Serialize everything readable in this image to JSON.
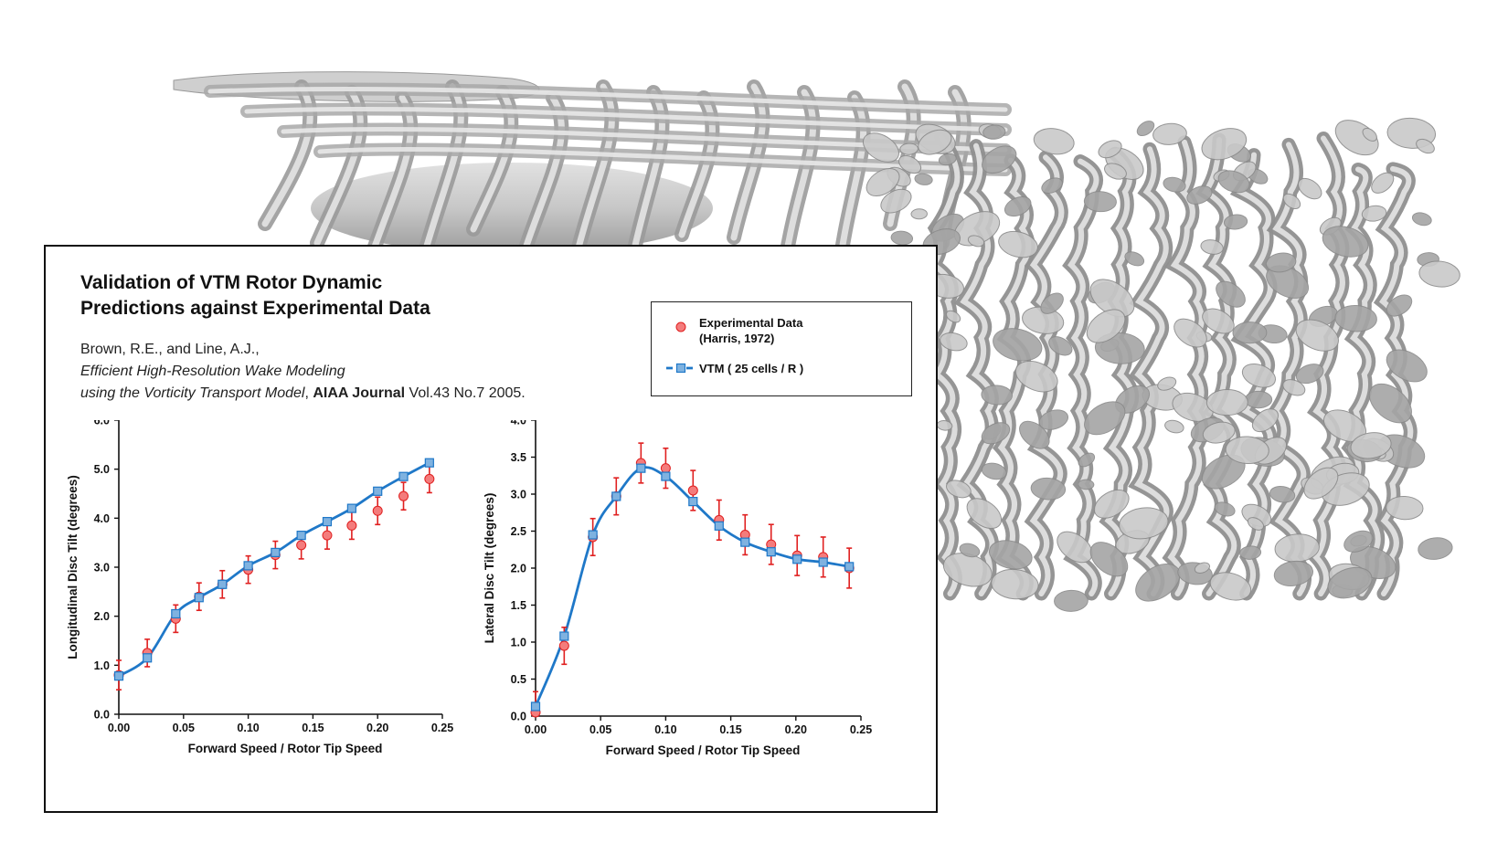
{
  "header": {
    "title_line1": "Validation of VTM Rotor Dynamic",
    "title_line2": "Predictions against Experimental Data"
  },
  "citation": {
    "authors": "Brown, R.E., and Line, A.J.,",
    "paper_title_line1": "Efficient High-Resolution Wake Modeling",
    "paper_title_line2": "using the Vorticity Transport Model",
    "separator": ", ",
    "journal": "AIAA Journal",
    "volume": " Vol.43 No.7 2005."
  },
  "legend": {
    "experimental_line1": "Experimental Data",
    "experimental_line2": "(Harris, 1972)",
    "vtm": "VTM ( 25 cells / R )"
  },
  "colors": {
    "experimental_marker": "#f47c7c",
    "error_bar": "#e02020",
    "vtm_line": "#1f78c8",
    "vtm_marker": "#7fb2e0",
    "wake": "#b8b8b8"
  },
  "chart_data": [
    {
      "type": "line",
      "xlabel": "Forward Speed / Rotor Tip Speed",
      "ylabel": "Longitudinal Disc Tilt (degrees)",
      "xlim": [
        0,
        0.25
      ],
      "ylim": [
        0,
        6
      ],
      "x_ticks": [
        "0.00",
        "0.05",
        "0.10",
        "0.15",
        "0.20",
        "0.25"
      ],
      "y_ticks": [
        "0.0",
        "1.0",
        "2.0",
        "3.0",
        "4.0",
        "5.0",
        "6.0"
      ],
      "series": [
        {
          "name": "Experimental Data (Harris, 1972)",
          "x": [
            0.0,
            0.022,
            0.044,
            0.062,
            0.08,
            0.1,
            0.121,
            0.141,
            0.161,
            0.18,
            0.2,
            0.22,
            0.24
          ],
          "y": [
            0.8,
            1.25,
            1.95,
            2.4,
            2.65,
            2.95,
            3.25,
            3.45,
            3.65,
            3.85,
            4.15,
            4.45,
            4.8
          ],
          "err": [
            0.3,
            0.28,
            0.28,
            0.28,
            0.28,
            0.28,
            0.28,
            0.28,
            0.28,
            0.28,
            0.28,
            0.28,
            0.28
          ]
        },
        {
          "name": "VTM ( 25 cells / R )",
          "x": [
            0.0,
            0.022,
            0.044,
            0.062,
            0.08,
            0.1,
            0.121,
            0.141,
            0.161,
            0.18,
            0.2,
            0.22,
            0.24
          ],
          "y": [
            0.78,
            1.15,
            2.05,
            2.38,
            2.65,
            3.03,
            3.3,
            3.65,
            3.93,
            4.2,
            4.55,
            4.85,
            5.13
          ]
        }
      ]
    },
    {
      "type": "line",
      "xlabel": "Forward Speed / Rotor Tip Speed",
      "ylabel": "Lateral Disc Tilt (degrees)",
      "xlim": [
        0,
        0.25
      ],
      "ylim": [
        0,
        4
      ],
      "x_ticks": [
        "0.00",
        "0.05",
        "0.10",
        "0.15",
        "0.20",
        "0.25"
      ],
      "y_ticks": [
        "0.0",
        "0.5",
        "1.0",
        "1.5",
        "2.0",
        "2.5",
        "3.0",
        "3.5",
        "4.0"
      ],
      "series": [
        {
          "name": "Experimental Data (Harris, 1972)",
          "x": [
            0.0,
            0.022,
            0.044,
            0.062,
            0.081,
            0.1,
            0.121,
            0.141,
            0.161,
            0.181,
            0.201,
            0.221,
            0.241
          ],
          "y": [
            0.05,
            0.95,
            2.42,
            2.97,
            3.42,
            3.35,
            3.05,
            2.65,
            2.45,
            2.32,
            2.17,
            2.15,
            2.0
          ],
          "err": [
            0.28,
            0.25,
            0.25,
            0.25,
            0.27,
            0.27,
            0.27,
            0.27,
            0.27,
            0.27,
            0.27,
            0.27,
            0.27
          ]
        },
        {
          "name": "VTM ( 25 cells / R )",
          "x": [
            0.0,
            0.022,
            0.044,
            0.062,
            0.081,
            0.1,
            0.121,
            0.141,
            0.161,
            0.181,
            0.201,
            0.221,
            0.241
          ],
          "y": [
            0.13,
            1.08,
            2.45,
            2.97,
            3.35,
            3.24,
            2.9,
            2.57,
            2.35,
            2.22,
            2.12,
            2.08,
            2.02
          ]
        }
      ]
    }
  ]
}
